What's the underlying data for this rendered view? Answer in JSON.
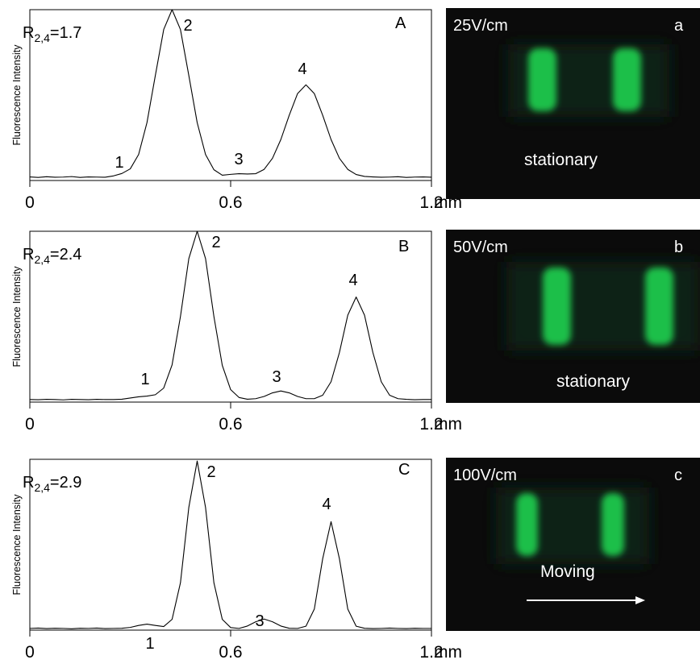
{
  "chart_data": [
    {
      "type": "line",
      "y_label": "Fluorescence Intensity",
      "x_label": "mm",
      "panel": "A",
      "resolution": {
        "symbol": "R",
        "subscript": "2,4",
        "text": "=1.7"
      },
      "peak_labels": [
        "1",
        "2",
        "3",
        "4"
      ],
      "xlim": [
        0,
        1.2
      ],
      "xticks": [
        0,
        0.6,
        1.2
      ],
      "ylim": [
        0,
        100
      ],
      "color": "#000000",
      "x": [
        0,
        0.025,
        0.05,
        0.075,
        0.1,
        0.125,
        0.15,
        0.175,
        0.2,
        0.225,
        0.25,
        0.275,
        0.3,
        0.325,
        0.35,
        0.375,
        0.4,
        0.425,
        0.45,
        0.475,
        0.5,
        0.525,
        0.55,
        0.575,
        0.6,
        0.625,
        0.65,
        0.675,
        0.7,
        0.725,
        0.75,
        0.775,
        0.8,
        0.825,
        0.85,
        0.875,
        0.9,
        0.925,
        0.95,
        0.975,
        1,
        1.025,
        1.05,
        1.075,
        1.1,
        1.125,
        1.15,
        1.175,
        1.2
      ],
      "values": [
        2.1,
        1.8,
        2.2,
        1.9,
        2.0,
        2.3,
        1.8,
        2.1,
        2.0,
        1.9,
        2.7,
        4.1,
        6.8,
        15.2,
        33.9,
        61.5,
        88.4,
        100,
        88.4,
        61.5,
        33.9,
        15.2,
        6.3,
        3.1,
        3.6,
        4,
        3.8,
        4.0,
        6.5,
        13.0,
        24.0,
        38.2,
        50.9,
        56,
        50.9,
        38.2,
        24.0,
        13.0,
        6.5,
        3.5,
        2.4,
        2.1,
        1.9,
        2.0,
        2.2,
        1.8,
        2.0,
        2.1,
        1.9
      ]
    },
    {
      "type": "line",
      "y_label": "Fluorescence Intensity",
      "x_label": "mm",
      "panel": "B",
      "resolution": {
        "symbol": "R",
        "subscript": "2,4",
        "text": "=2.4"
      },
      "peak_labels": [
        "1",
        "2",
        "3",
        "4"
      ],
      "xlim": [
        0,
        1.2
      ],
      "xticks": [
        0,
        0.6,
        1.2
      ],
      "ylim": [
        0,
        100
      ],
      "color": "#000000",
      "x": [
        0,
        0.025,
        0.05,
        0.075,
        0.1,
        0.125,
        0.15,
        0.175,
        0.2,
        0.225,
        0.25,
        0.275,
        0.3,
        0.325,
        0.35,
        0.375,
        0.4,
        0.425,
        0.45,
        0.475,
        0.5,
        0.525,
        0.55,
        0.575,
        0.6,
        0.625,
        0.65,
        0.675,
        0.7,
        0.725,
        0.75,
        0.775,
        0.8,
        0.825,
        0.85,
        0.875,
        0.9,
        0.925,
        0.95,
        0.975,
        1,
        1.025,
        1.05,
        1.075,
        1.1,
        1.125,
        1.15,
        1.175,
        1.2
      ],
      "values": [
        1.5,
        1.4,
        1.6,
        1.5,
        1.3,
        1.6,
        1.5,
        1.4,
        1.6,
        1.5,
        1.5,
        1.7,
        2.4,
        3.1,
        3.5,
        4.3,
        8.2,
        21.8,
        50.1,
        84.0,
        100,
        84.0,
        50.1,
        21.5,
        7.3,
        2.7,
        1.7,
        2.0,
        3.3,
        5.4,
        6.5,
        5.4,
        3.3,
        2.0,
        2.0,
        4.0,
        11.9,
        29.0,
        50.9,
        61.5,
        50.9,
        29.0,
        11.9,
        4.0,
        2.0,
        1.6,
        1.4,
        1.5,
        1.5
      ]
    },
    {
      "type": "line",
      "y_label": "Fluorescence Intensity",
      "x_label": "mm",
      "panel": "C",
      "resolution": {
        "symbol": "R",
        "subscript": "2,4",
        "text": "=2.9"
      },
      "peak_labels": [
        "1",
        "2",
        "3",
        "4"
      ],
      "xlim": [
        0,
        1.2
      ],
      "xticks": [
        0,
        0.6,
        1.2
      ],
      "ylim": [
        0,
        100
      ],
      "color": "#000000",
      "x": [
        0,
        0.025,
        0.05,
        0.075,
        0.1,
        0.125,
        0.15,
        0.175,
        0.2,
        0.225,
        0.25,
        0.275,
        0.3,
        0.325,
        0.35,
        0.375,
        0.4,
        0.425,
        0.45,
        0.475,
        0.5,
        0.525,
        0.55,
        0.575,
        0.6,
        0.625,
        0.65,
        0.675,
        0.7,
        0.725,
        0.75,
        0.775,
        0.8,
        0.825,
        0.85,
        0.875,
        0.9,
        0.925,
        0.95,
        0.975,
        1,
        1.025,
        1.05,
        1.075,
        1.1,
        1.125,
        1.15,
        1.175,
        1.2
      ],
      "values": [
        1.0,
        1.2,
        0.9,
        1.1,
        1.0,
        0.8,
        1.1,
        1.0,
        1.2,
        0.9,
        1.0,
        1.1,
        1.6,
        2.75,
        3.5,
        2.75,
        2.1,
        6.3,
        27.7,
        71.8,
        99,
        71.8,
        27.7,
        6.3,
        1.5,
        1.0,
        2.4,
        4.9,
        6.5,
        4.9,
        2.4,
        1.1,
        1.0,
        2.3,
        12.3,
        41.8,
        63.5,
        41.8,
        12.3,
        2.3,
        1.1,
        0.9,
        1.0,
        1.2,
        1.0,
        0.9,
        1.1,
        1.0,
        1.0
      ]
    }
  ],
  "images": [
    {
      "field": "25V/cm",
      "label": "a",
      "caption": "stationary"
    },
    {
      "field": "50V/cm",
      "label": "b",
      "caption": "stationary"
    },
    {
      "field": "100V/cm",
      "label": "c",
      "caption": "Moving"
    }
  ]
}
